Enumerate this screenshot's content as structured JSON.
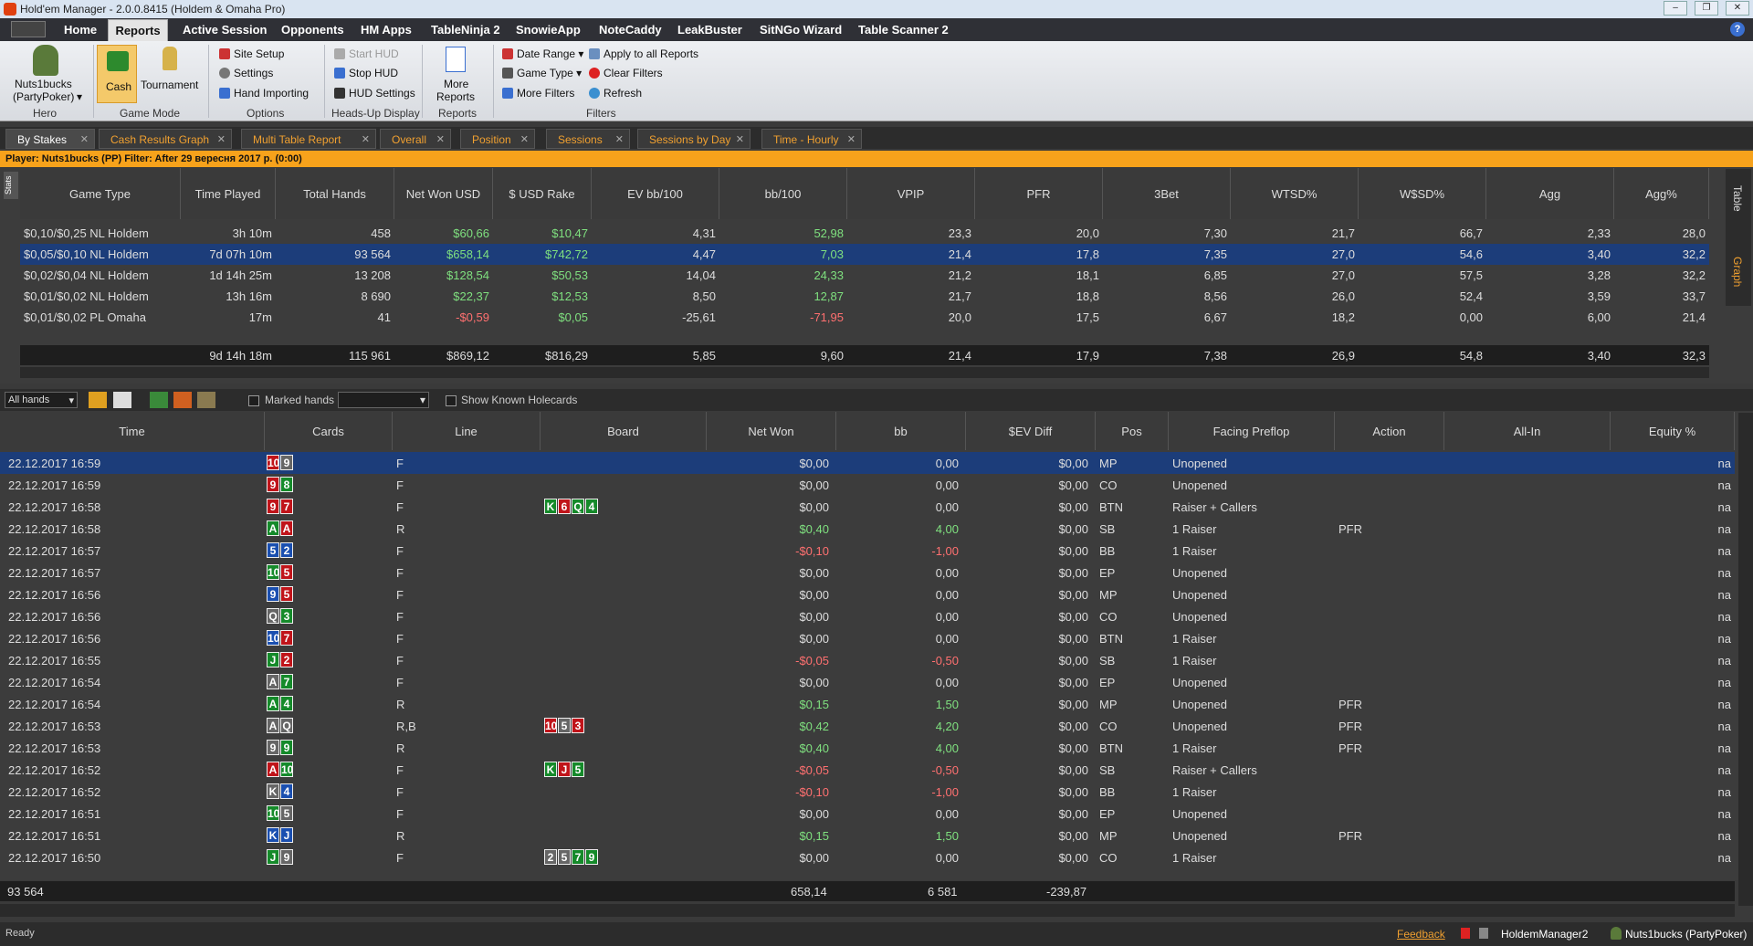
{
  "window": {
    "title": "Hold'em Manager - 2.0.0.8415 (Holdem & Omaha Pro)"
  },
  "menu": {
    "home": "Home",
    "reports": "Reports",
    "active_session": "Active Session",
    "opponents": "Opponents",
    "hm_apps": "HM Apps",
    "tableninja": "TableNinja 2",
    "snowie": "SnowieApp",
    "notecaddy": "NoteCaddy",
    "leakbuster": "LeakBuster",
    "sitngo": "SitNGo Wizard",
    "tablescanner": "Table Scanner 2"
  },
  "ribbon": {
    "hero_name": "Nuts1bucks",
    "hero_site": "(PartyPoker)",
    "hero_group": "Hero",
    "cash": "Cash",
    "tournament": "Tournament",
    "game_mode_group": "Game Mode",
    "site_setup": "Site Setup",
    "settings": "Settings",
    "hand_importing": "Hand Importing",
    "options_group": "Options",
    "start_hud": "Start HUD",
    "stop_hud": "Stop HUD",
    "hud_settings": "HUD Settings",
    "hud_group": "Heads-Up Display",
    "more_reports": "More",
    "more_reports2": "Reports",
    "reports_group": "Reports",
    "date_range": "Date Range",
    "game_type": "Game Type",
    "more_filters": "More Filters",
    "apply_all": "Apply to all Reports",
    "clear_filters": "Clear Filters",
    "refresh": "Refresh",
    "filters_group": "Filters"
  },
  "tabs": [
    "By Stakes",
    "Cash Results Graph",
    "Multi Table Report",
    "Overall",
    "Position",
    "Sessions",
    "Sessions by Day",
    "Time - Hourly"
  ],
  "filter_text": "Player: Nuts1bucks (PP)   Filter: After 29 вересня 2017 p. (0:00)",
  "stats_label": "Stats",
  "side_tabs": {
    "table": "Table",
    "graph": "Graph"
  },
  "upper": {
    "headers": [
      "Game Type",
      "Time Played",
      "Total Hands",
      "Net Won USD",
      "$ USD Rake",
      "EV bb/100",
      "bb/100",
      "VPIP",
      "PFR",
      "3Bet",
      "WTSD%",
      "W$SD%",
      "Agg",
      "Agg%"
    ],
    "rows": [
      [
        "$0,10/$0,25 NL Holdem",
        "3h 10m",
        "458",
        "$60,66",
        "$10,47",
        "4,31",
        "52,98",
        "23,3",
        "20,0",
        "7,30",
        "21,7",
        "66,7",
        "2,33",
        "28,0"
      ],
      [
        "$0,05/$0,10 NL Holdem",
        "7d 07h 10m",
        "93 564",
        "$658,14",
        "$742,72",
        "4,47",
        "7,03",
        "21,4",
        "17,8",
        "7,35",
        "27,0",
        "54,6",
        "3,40",
        "32,2"
      ],
      [
        "$0,02/$0,04 NL Holdem",
        "1d 14h 25m",
        "13 208",
        "$128,54",
        "$50,53",
        "14,04",
        "24,33",
        "21,2",
        "18,1",
        "6,85",
        "27,0",
        "57,5",
        "3,28",
        "32,2"
      ],
      [
        "$0,01/$0,02 NL Holdem",
        "13h 16m",
        "8 690",
        "$22,37",
        "$12,53",
        "8,50",
        "12,87",
        "21,7",
        "18,8",
        "8,56",
        "26,0",
        "52,4",
        "3,59",
        "33,7"
      ],
      [
        "$0,01/$0,02 PL Omaha",
        "17m",
        "41",
        "-$0,59",
        "$0,05",
        "-25,61",
        "-71,95",
        "20,0",
        "17,5",
        "6,67",
        "18,2",
        "0,00",
        "6,00",
        "21,4"
      ]
    ],
    "totals": [
      "",
      "9d 14h 18m",
      "115 961",
      "$869,12",
      "$816,29",
      "5,85",
      "9,60",
      "21,4",
      "17,9",
      "7,38",
      "26,9",
      "54,8",
      "3,40",
      "32,3"
    ]
  },
  "toolbar": {
    "all_hands": "All hands",
    "marked_hands": "Marked hands",
    "show_known": "Show Known Holecards"
  },
  "lower": {
    "headers": [
      "Time",
      "Cards",
      "Line",
      "Board",
      "Net Won",
      "bb",
      "$EV Diff",
      "Pos",
      "Facing Preflop",
      "Action",
      "All-In",
      "Equity %"
    ],
    "rows": [
      {
        "time": "22.12.2017 16:59",
        "cards": [
          [
            "10",
            "r"
          ],
          [
            "9",
            "s"
          ]
        ],
        "line": "F",
        "board": [],
        "net": "$0,00",
        "bb": "0,00",
        "ev": "$0,00",
        "pos": "MP",
        "facing": "Unopened",
        "action": "",
        "eq": "na"
      },
      {
        "time": "22.12.2017 16:59",
        "cards": [
          [
            "9",
            "r"
          ],
          [
            "8",
            "g"
          ]
        ],
        "line": "F",
        "board": [],
        "net": "$0,00",
        "bb": "0,00",
        "ev": "$0,00",
        "pos": "CO",
        "facing": "Unopened",
        "action": "",
        "eq": "na"
      },
      {
        "time": "22.12.2017 16:58",
        "cards": [
          [
            "9",
            "r"
          ],
          [
            "7",
            "r"
          ]
        ],
        "line": "F",
        "board": [
          [
            "K",
            "g"
          ],
          [
            "6",
            "r"
          ],
          [
            "Q",
            "g"
          ],
          [
            "4",
            "g"
          ]
        ],
        "net": "$0,00",
        "bb": "0,00",
        "ev": "$0,00",
        "pos": "BTN",
        "facing": "Raiser + Callers",
        "action": "",
        "eq": "na"
      },
      {
        "time": "22.12.2017 16:58",
        "cards": [
          [
            "A",
            "g"
          ],
          [
            "A",
            "r"
          ]
        ],
        "line": "R",
        "board": [],
        "net": "$0,40",
        "bb": "4,00",
        "ev": "$0,00",
        "pos": "SB",
        "facing": "1 Raiser",
        "action": "PFR",
        "eq": "na"
      },
      {
        "time": "22.12.2017 16:57",
        "cards": [
          [
            "5",
            "b"
          ],
          [
            "2",
            "b"
          ]
        ],
        "line": "F",
        "board": [],
        "net": "-$0,10",
        "bb": "-1,00",
        "ev": "$0,00",
        "pos": "BB",
        "facing": "1 Raiser",
        "action": "",
        "eq": "na"
      },
      {
        "time": "22.12.2017 16:57",
        "cards": [
          [
            "10",
            "g"
          ],
          [
            "5",
            "r"
          ]
        ],
        "line": "F",
        "board": [],
        "net": "$0,00",
        "bb": "0,00",
        "ev": "$0,00",
        "pos": "EP",
        "facing": "Unopened",
        "action": "",
        "eq": "na"
      },
      {
        "time": "22.12.2017 16:56",
        "cards": [
          [
            "9",
            "b"
          ],
          [
            "5",
            "r"
          ]
        ],
        "line": "F",
        "board": [],
        "net": "$0,00",
        "bb": "0,00",
        "ev": "$0,00",
        "pos": "MP",
        "facing": "Unopened",
        "action": "",
        "eq": "na"
      },
      {
        "time": "22.12.2017 16:56",
        "cards": [
          [
            "Q",
            "s"
          ],
          [
            "3",
            "g"
          ]
        ],
        "line": "F",
        "board": [],
        "net": "$0,00",
        "bb": "0,00",
        "ev": "$0,00",
        "pos": "CO",
        "facing": "Unopened",
        "action": "",
        "eq": "na"
      },
      {
        "time": "22.12.2017 16:56",
        "cards": [
          [
            "10",
            "b"
          ],
          [
            "7",
            "r"
          ]
        ],
        "line": "F",
        "board": [],
        "net": "$0,00",
        "bb": "0,00",
        "ev": "$0,00",
        "pos": "BTN",
        "facing": "1 Raiser",
        "action": "",
        "eq": "na"
      },
      {
        "time": "22.12.2017 16:55",
        "cards": [
          [
            "J",
            "g"
          ],
          [
            "2",
            "r"
          ]
        ],
        "line": "F",
        "board": [],
        "net": "-$0,05",
        "bb": "-0,50",
        "ev": "$0,00",
        "pos": "SB",
        "facing": "1 Raiser",
        "action": "",
        "eq": "na"
      },
      {
        "time": "22.12.2017 16:54",
        "cards": [
          [
            "A",
            "s"
          ],
          [
            "7",
            "g"
          ]
        ],
        "line": "F",
        "board": [],
        "net": "$0,00",
        "bb": "0,00",
        "ev": "$0,00",
        "pos": "EP",
        "facing": "Unopened",
        "action": "",
        "eq": "na"
      },
      {
        "time": "22.12.2017 16:54",
        "cards": [
          [
            "A",
            "g"
          ],
          [
            "4",
            "g"
          ]
        ],
        "line": "R",
        "board": [],
        "net": "$0,15",
        "bb": "1,50",
        "ev": "$0,00",
        "pos": "MP",
        "facing": "Unopened",
        "action": "PFR",
        "eq": "na"
      },
      {
        "time": "22.12.2017 16:53",
        "cards": [
          [
            "A",
            "s"
          ],
          [
            "Q",
            "s"
          ]
        ],
        "line": "R,B",
        "board": [
          [
            "10",
            "r"
          ],
          [
            "5",
            "s"
          ],
          [
            "3",
            "r"
          ]
        ],
        "net": "$0,42",
        "bb": "4,20",
        "ev": "$0,00",
        "pos": "CO",
        "facing": "Unopened",
        "action": "PFR",
        "eq": "na"
      },
      {
        "time": "22.12.2017 16:53",
        "cards": [
          [
            "9",
            "s"
          ],
          [
            "9",
            "g"
          ]
        ],
        "line": "R",
        "board": [],
        "net": "$0,40",
        "bb": "4,00",
        "ev": "$0,00",
        "pos": "BTN",
        "facing": "1 Raiser",
        "action": "PFR",
        "eq": "na"
      },
      {
        "time": "22.12.2017 16:52",
        "cards": [
          [
            "A",
            "r"
          ],
          [
            "10",
            "g"
          ]
        ],
        "line": "F",
        "board": [
          [
            "K",
            "g"
          ],
          [
            "J",
            "r"
          ],
          [
            "5",
            "g"
          ]
        ],
        "net": "-$0,05",
        "bb": "-0,50",
        "ev": "$0,00",
        "pos": "SB",
        "facing": "Raiser + Callers",
        "action": "",
        "eq": "na"
      },
      {
        "time": "22.12.2017 16:52",
        "cards": [
          [
            "K",
            "s"
          ],
          [
            "4",
            "b"
          ]
        ],
        "line": "F",
        "board": [],
        "net": "-$0,10",
        "bb": "-1,00",
        "ev": "$0,00",
        "pos": "BB",
        "facing": "1 Raiser",
        "action": "",
        "eq": "na"
      },
      {
        "time": "22.12.2017 16:51",
        "cards": [
          [
            "10",
            "g"
          ],
          [
            "5",
            "s"
          ]
        ],
        "line": "F",
        "board": [],
        "net": "$0,00",
        "bb": "0,00",
        "ev": "$0,00",
        "pos": "EP",
        "facing": "Unopened",
        "action": "",
        "eq": "na"
      },
      {
        "time": "22.12.2017 16:51",
        "cards": [
          [
            "K",
            "b"
          ],
          [
            "J",
            "b"
          ]
        ],
        "line": "R",
        "board": [],
        "net": "$0,15",
        "bb": "1,50",
        "ev": "$0,00",
        "pos": "MP",
        "facing": "Unopened",
        "action": "PFR",
        "eq": "na"
      },
      {
        "time": "22.12.2017 16:50",
        "cards": [
          [
            "J",
            "g"
          ],
          [
            "9",
            "s"
          ]
        ],
        "line": "F",
        "board": [
          [
            "2",
            "s"
          ],
          [
            "5",
            "s"
          ],
          [
            "7",
            "g"
          ],
          [
            "9",
            "g"
          ]
        ],
        "net": "$0,00",
        "bb": "0,00",
        "ev": "$0,00",
        "pos": "CO",
        "facing": "1 Raiser",
        "action": "",
        "eq": "na"
      }
    ],
    "totals": {
      "count": "93 564",
      "net": "658,14",
      "bb": "6 581",
      "ev": "-239,87"
    }
  },
  "status": {
    "ready": "Ready",
    "feedback": "Feedback",
    "db": "HoldemManager2",
    "player": "Nuts1bucks (PartyPoker)"
  }
}
